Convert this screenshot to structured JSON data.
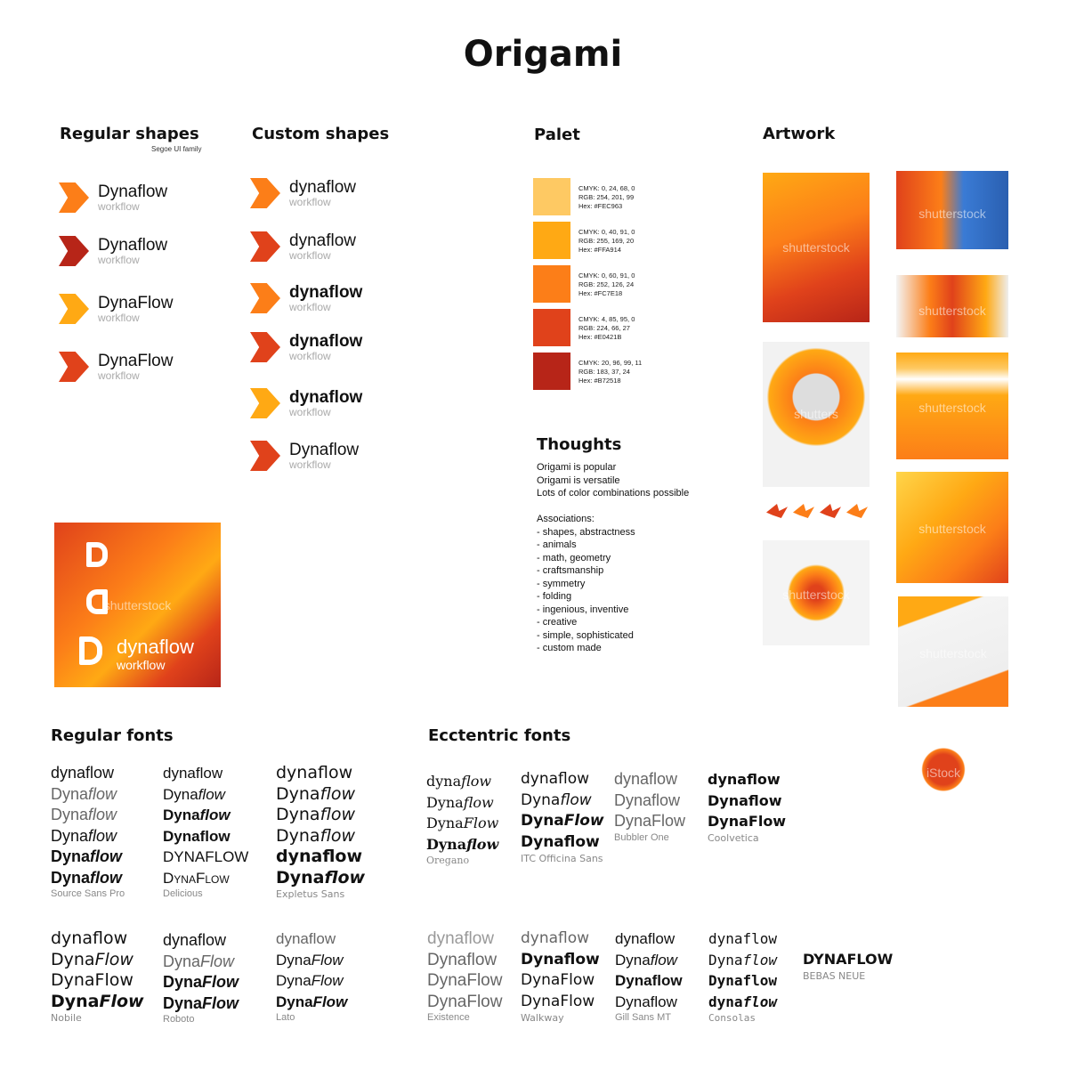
{
  "title": "Origami",
  "sections": {
    "regular_shapes": "Regular shapes",
    "regular_shapes_note": "Segoe UI family",
    "custom_shapes": "Custom shapes",
    "palet": "Palet",
    "artwork": "Artwork",
    "thoughts": "Thoughts",
    "regular_fonts": "Regular fonts",
    "eccentric_fonts": "Ecctentric fonts"
  },
  "regular_logos": [
    {
      "name": "Dynaflow",
      "sub": "workflow",
      "color": "#FC7E18"
    },
    {
      "name": "Dynaflow",
      "sub": "workflow",
      "color": "#B72518"
    },
    {
      "name": "DynaFlow",
      "sub": "workflow",
      "color": "#FFA914"
    },
    {
      "name": "DynaFlow",
      "sub": "workflow",
      "color": "#E0421B"
    }
  ],
  "custom_logos": [
    {
      "name": "dynaflow",
      "sub": "workflow",
      "color": "#FC7E18"
    },
    {
      "name": "dynaflow",
      "sub": "workflow",
      "color": "#E0421B"
    },
    {
      "name": "dynaflow",
      "sub": "workflow",
      "color": "#FC7E18"
    },
    {
      "name": "dynaflow",
      "sub": "workflow",
      "color": "#E0421B"
    },
    {
      "name": "dynaflow",
      "sub": "workflow",
      "color": "#FFA914"
    },
    {
      "name": "Dynaflow",
      "sub": "workflow",
      "color": "#E0421B"
    }
  ],
  "palette": [
    {
      "hex": "#FEC963",
      "l1": "CMYK: 0, 24, 68, 0",
      "l2": "RGB: 254, 201, 99",
      "l3": "Hex: #FEC963"
    },
    {
      "hex": "#FFA914",
      "l1": "CMYK: 0, 40, 91, 0",
      "l2": "RGB: 255, 169, 20",
      "l3": "Hex: #FFA914"
    },
    {
      "hex": "#FC7E18",
      "l1": "CMYK: 0, 60, 91, 0",
      "l2": "RGB: 252, 126, 24",
      "l3": "Hex: #FC7E18"
    },
    {
      "hex": "#E0421B",
      "l1": "CMYK: 4, 85, 95, 0",
      "l2": "RGB: 224, 66, 27",
      "l3": "Hex: #E0421B"
    },
    {
      "hex": "#B72518",
      "l1": "CMYK: 20, 96, 99, 11",
      "l2": "RGB: 183, 37, 24",
      "l3": "Hex: #B72518"
    }
  ],
  "thoughts": "Origami is popular\nOrigami is versatile\nLots of color combinations possible\n\nAssociations:\n- shapes, abstractness\n- animals\n- math, geometry\n- craftsmanship\n- symmetry\n- folding\n- ingenious, inventive\n- creative\n- simple, sophisticated\n- custom made",
  "hero_logo": {
    "name": "dynaflow",
    "sub": "workflow",
    "watermark": "shutterstock"
  },
  "artwork": [
    {
      "watermark": "shutterstock"
    },
    {
      "watermark": "shutterstock"
    },
    {
      "watermark": "shutterstock"
    },
    {
      "watermark": "shutterstock"
    },
    {
      "watermark": "shutters"
    },
    {
      "watermark": "shutterstock"
    },
    {
      "watermark": ""
    },
    {
      "watermark": "shutterstock"
    },
    {
      "watermark": "shutterstock"
    },
    {
      "watermark": "iStock"
    }
  ],
  "fonts": [
    {
      "font": "Source Sans Pro",
      "samples": [
        "dynaflow",
        "Dynaflow",
        "Dynaflow",
        "Dynaflow",
        "Dynaflow",
        "Dynaflow"
      ]
    },
    {
      "font": "Delicious",
      "samples": [
        "dynaflow",
        "Dynaflow",
        "Dynaflow",
        "Dynaflow",
        "DYNAFLOW",
        "DynaFlow"
      ]
    },
    {
      "font": "Expletus Sans",
      "samples": [
        "dynaflow",
        "Dynaflow",
        "Dynaflow",
        "Dynaflow",
        "dynaflow",
        "Dynaflow"
      ]
    },
    {
      "font": "Oregano",
      "samples": [
        "dynaflow",
        "Dynaflow",
        "DynaFlow",
        "Dynaflow"
      ]
    },
    {
      "font": "ITC Officina Sans",
      "samples": [
        "dynaflow",
        "Dynaflow",
        "DynaFlow",
        "Dynaflow"
      ]
    },
    {
      "font": "Bubbler One",
      "samples": [
        "dynaflow",
        "Dynaflow",
        "DynaFlow"
      ]
    },
    {
      "font": "Coolvetica",
      "samples": [
        "dynaflow",
        "Dynaflow",
        "DynaFlow"
      ]
    },
    {
      "font": "Nobile",
      "samples": [
        "dynaflow",
        "DynaFlow",
        "DynaFlow",
        "DynaFlow"
      ]
    },
    {
      "font": "Roboto",
      "samples": [
        "dynaflow",
        "DynaFlow",
        "DynaFlow",
        "DynaFlow"
      ]
    },
    {
      "font": "Lato",
      "samples": [
        "dynaflow",
        "DynaFlow",
        "DynaFlow",
        "DynaFlow"
      ]
    },
    {
      "font": "Existence",
      "samples": [
        "dynaflow",
        "Dynaflow",
        "DynaFlow",
        "DynaFlow"
      ]
    },
    {
      "font": "Walkway",
      "samples": [
        "dynaflow",
        "Dynaflow",
        "DynaFlow",
        "DynaFlow"
      ]
    },
    {
      "font": "Gill Sans MT",
      "samples": [
        "dynaflow",
        "Dynaflow",
        "Dynaflow",
        "Dynaflow"
      ]
    },
    {
      "font": "Consolas",
      "samples": [
        "dynaflow",
        "Dynaflow",
        "Dynaflow",
        "dynaflow"
      ]
    },
    {
      "font": "BEBAS NEUE",
      "samples": [
        "DYNAFLOW"
      ]
    }
  ]
}
